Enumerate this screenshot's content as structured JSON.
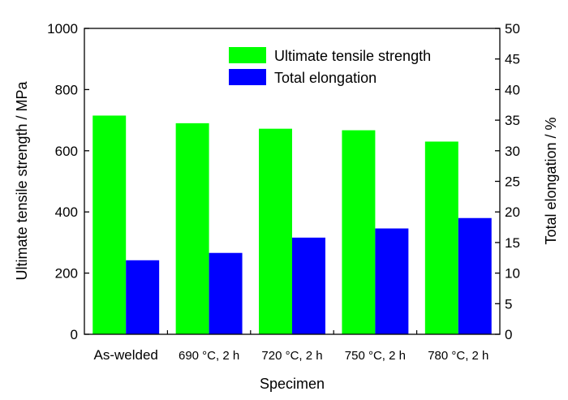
{
  "chart_data": {
    "type": "bar",
    "categories": [
      "As-welded",
      "690 °C, 2 h",
      "720 °C, 2 h",
      "750 °C, 2 h",
      "780 °C, 2 h"
    ],
    "xlabel": "Specimen",
    "ylabel_left": "Ultimate tensile strength / MPa",
    "ylabel_right": "Total elongation / %",
    "ylim_left": [
      0,
      1000
    ],
    "ylim_right": [
      0,
      50
    ],
    "yticks_left": [
      "0",
      "200",
      "400",
      "600",
      "800",
      "1000"
    ],
    "yticks_right": [
      "0",
      "5",
      "10",
      "15",
      "20",
      "25",
      "30",
      "35",
      "40",
      "45",
      "50"
    ],
    "grid": false,
    "legend_position": "top-right",
    "series": [
      {
        "name": "Ultimate tensile strength",
        "axis": "left",
        "color": "#00ff00",
        "values": [
          715,
          690,
          672,
          667,
          630
        ]
      },
      {
        "name": "Total elongation",
        "axis": "right",
        "color": "#0000ff",
        "values": [
          12.1,
          13.3,
          15.8,
          17.3,
          19.0
        ]
      }
    ]
  }
}
